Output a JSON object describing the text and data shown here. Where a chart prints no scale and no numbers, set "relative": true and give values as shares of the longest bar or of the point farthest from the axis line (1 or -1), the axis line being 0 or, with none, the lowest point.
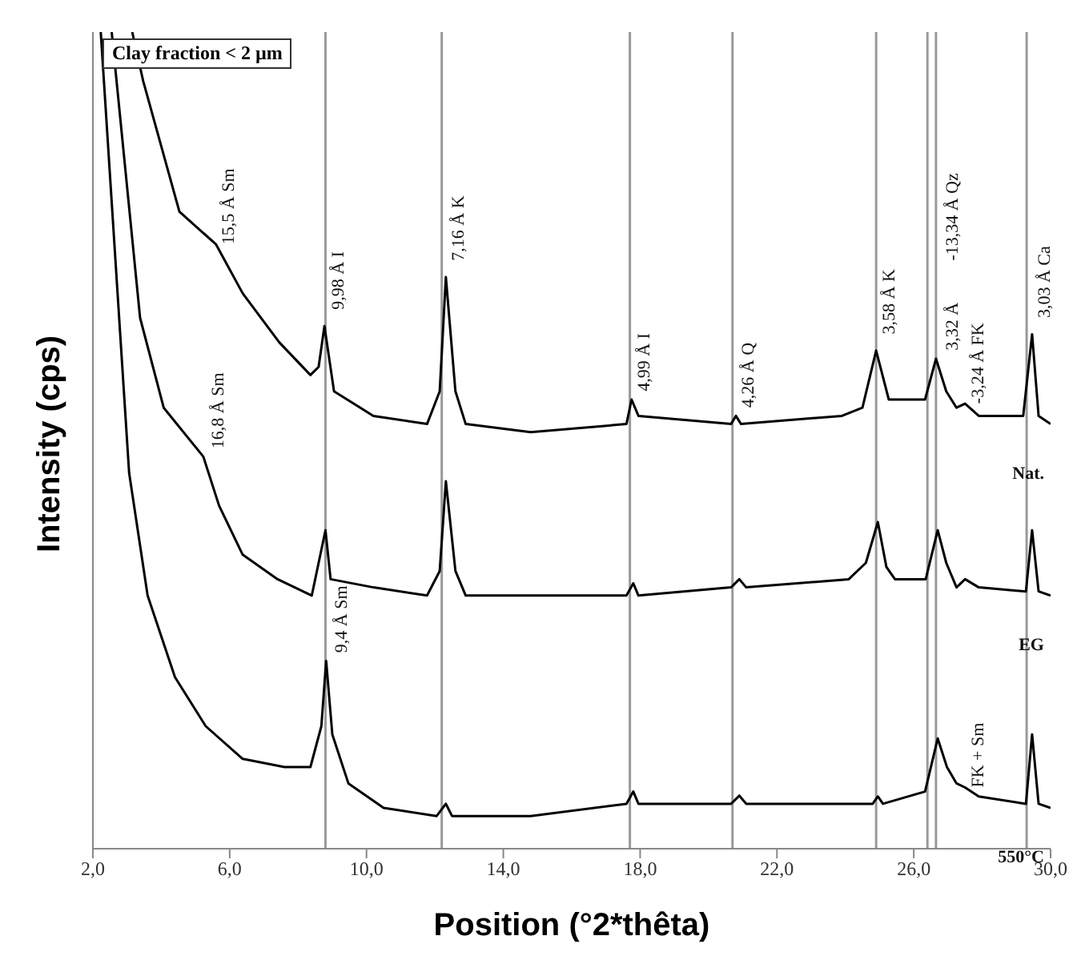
{
  "chart_data": {
    "type": "line",
    "relative": true,
    "xlabel": "Position (°2*thêta)",
    "ylabel": "Intensity (cps)",
    "xlim": [
      2,
      30
    ],
    "xticks": [
      {
        "value": 2,
        "label": "2,0"
      },
      {
        "value": 6,
        "label": "6,0"
      },
      {
        "value": 10,
        "label": "10,0"
      },
      {
        "value": 14,
        "label": "14,0"
      },
      {
        "value": 18,
        "label": "18,0"
      },
      {
        "value": 22,
        "label": "22,0"
      },
      {
        "value": 26,
        "label": "26,0"
      },
      {
        "value": 30,
        "label": "30,0"
      }
    ],
    "marker": "none",
    "line_style": "solid",
    "series": [
      {
        "name": "Nat.",
        "color": "#000000",
        "x": [
          3.15,
          3.47,
          4.53,
          5.6,
          6.38,
          7.45,
          8.36,
          8.6,
          8.77,
          9.05,
          10.2,
          11.77,
          12.14,
          12.32,
          12.6,
          12.9,
          14.8,
          17.6,
          17.75,
          17.95,
          20.66,
          20.8,
          20.95,
          23.9,
          24.5,
          24.9,
          25.27,
          26.33,
          26.65,
          26.95,
          27.25,
          27.5,
          27.9,
          29.2,
          29.46,
          29.65,
          30
        ],
        "values": [
          1.0,
          0.94,
          0.78,
          0.74,
          0.68,
          0.62,
          0.58,
          0.59,
          0.64,
          0.56,
          0.53,
          0.52,
          0.56,
          0.7,
          0.56,
          0.52,
          0.51,
          0.52,
          0.55,
          0.53,
          0.52,
          0.53,
          0.52,
          0.53,
          0.54,
          0.61,
          0.55,
          0.55,
          0.6,
          0.56,
          0.54,
          0.545,
          0.53,
          0.53,
          0.63,
          0.53,
          0.52
        ]
      },
      {
        "name": "EG",
        "color": "#000000",
        "x": [
          2.55,
          3.38,
          4.07,
          5.23,
          5.69,
          6.38,
          7.4,
          8.4,
          8.8,
          8.95,
          10.2,
          11.77,
          12.14,
          12.32,
          12.6,
          12.9,
          14.8,
          17.6,
          17.8,
          17.95,
          20.66,
          20.9,
          21.1,
          24.1,
          24.6,
          24.95,
          25.2,
          25.45,
          26.35,
          26.7,
          26.95,
          27.25,
          27.5,
          27.9,
          29.28,
          29.46,
          29.65,
          30
        ],
        "values": [
          1.0,
          0.65,
          0.54,
          0.48,
          0.42,
          0.36,
          0.33,
          0.31,
          0.39,
          0.33,
          0.32,
          0.31,
          0.34,
          0.45,
          0.34,
          0.31,
          0.31,
          0.31,
          0.325,
          0.31,
          0.32,
          0.33,
          0.32,
          0.33,
          0.35,
          0.4,
          0.345,
          0.33,
          0.33,
          0.39,
          0.35,
          0.32,
          0.33,
          0.32,
          0.315,
          0.39,
          0.315,
          0.31
        ]
      },
      {
        "name": "550°C",
        "color": "#000000",
        "x": [
          2.23,
          3.06,
          3.6,
          4.4,
          5.3,
          6.38,
          7.6,
          8.36,
          8.68,
          8.82,
          9.0,
          9.47,
          10.5,
          12.05,
          12.32,
          12.5,
          14.8,
          17.6,
          17.8,
          17.95,
          20.66,
          20.9,
          21.1,
          24.8,
          24.95,
          25.1,
          26.33,
          26.7,
          26.97,
          27.25,
          27.5,
          27.9,
          29.28,
          29.46,
          29.65,
          30
        ],
        "values": [
          1.0,
          0.46,
          0.31,
          0.21,
          0.15,
          0.11,
          0.1,
          0.1,
          0.15,
          0.23,
          0.14,
          0.08,
          0.05,
          0.04,
          0.055,
          0.04,
          0.04,
          0.055,
          0.07,
          0.055,
          0.055,
          0.065,
          0.055,
          0.055,
          0.064,
          0.055,
          0.07,
          0.135,
          0.1,
          0.08,
          0.075,
          0.064,
          0.055,
          0.14,
          0.055,
          0.05
        ]
      }
    ],
    "ref_lines": [
      {
        "axis": "x",
        "value": 8.8,
        "color": "#999999"
      },
      {
        "axis": "x",
        "value": 12.2,
        "color": "#999999"
      },
      {
        "axis": "x",
        "value": 17.7,
        "color": "#999999"
      },
      {
        "axis": "x",
        "value": 20.7,
        "color": "#999999"
      },
      {
        "axis": "x",
        "value": 24.9,
        "color": "#999999"
      },
      {
        "axis": "x",
        "value": 26.4,
        "color": "#999999"
      },
      {
        "axis": "x",
        "value": 26.65,
        "color": "#999999"
      },
      {
        "axis": "x",
        "value": 29.3,
        "color": "#999999"
      }
    ],
    "annotations": [
      "Clay fraction < 2 µm",
      {
        "text": "15,5 Å  Sm",
        "x": 5.6,
        "y": 0.74
      },
      {
        "text": "9,98 Å  I",
        "x": 8.8,
        "y": 0.66
      },
      {
        "text": "7,16 Å  K",
        "x": 12.32,
        "y": 0.72
      },
      {
        "text": "4,99 Å  I",
        "x": 17.75,
        "y": 0.56
      },
      {
        "text": "4,26 Å  Q",
        "x": 20.8,
        "y": 0.54
      },
      {
        "text": "3,58 Å  K",
        "x": 24.9,
        "y": 0.63
      },
      {
        "text": "3,32 Å",
        "x": 26.75,
        "y": 0.61
      },
      {
        "text": "-13,34 Å  Qz",
        "x": 26.75,
        "y": 0.72
      },
      {
        "text": "-3,24 Å  FK",
        "x": 27.5,
        "y": 0.545
      },
      {
        "text": "3,03 Å  Ca",
        "x": 29.46,
        "y": 0.65
      },
      {
        "text": "16,8 Å  Sm",
        "x": 5.3,
        "y": 0.49
      },
      {
        "text": "9,4 Å  Sm",
        "x": 8.9,
        "y": 0.24
      },
      {
        "text": "FK + Sm",
        "x": 27.5,
        "y": 0.075
      }
    ]
  }
}
